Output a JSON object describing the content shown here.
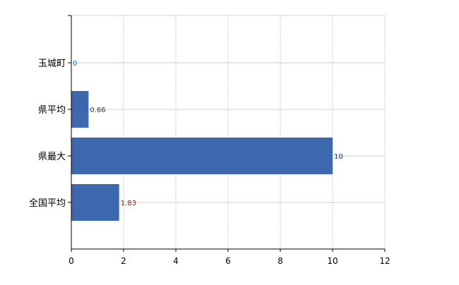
{
  "chart_data": {
    "type": "bar",
    "orientation": "horizontal",
    "categories": [
      "玉城町",
      "県平均",
      "県最大",
      "全国平均"
    ],
    "values": [
      0,
      0.66,
      10,
      1.83
    ],
    "data_labels": [
      "0",
      "0.66",
      "10",
      "1.83"
    ],
    "xlim": [
      0,
      12
    ],
    "xticks": [
      "0",
      "2",
      "4",
      "6",
      "8",
      "10",
      "12"
    ],
    "title": "",
    "xlabel": "",
    "ylabel": "",
    "grid": true,
    "bar_color": "#3e68ad",
    "label_colors": [
      "#1c6fb8",
      "#333333",
      "#1a2a6c",
      "#7a2a10"
    ]
  }
}
